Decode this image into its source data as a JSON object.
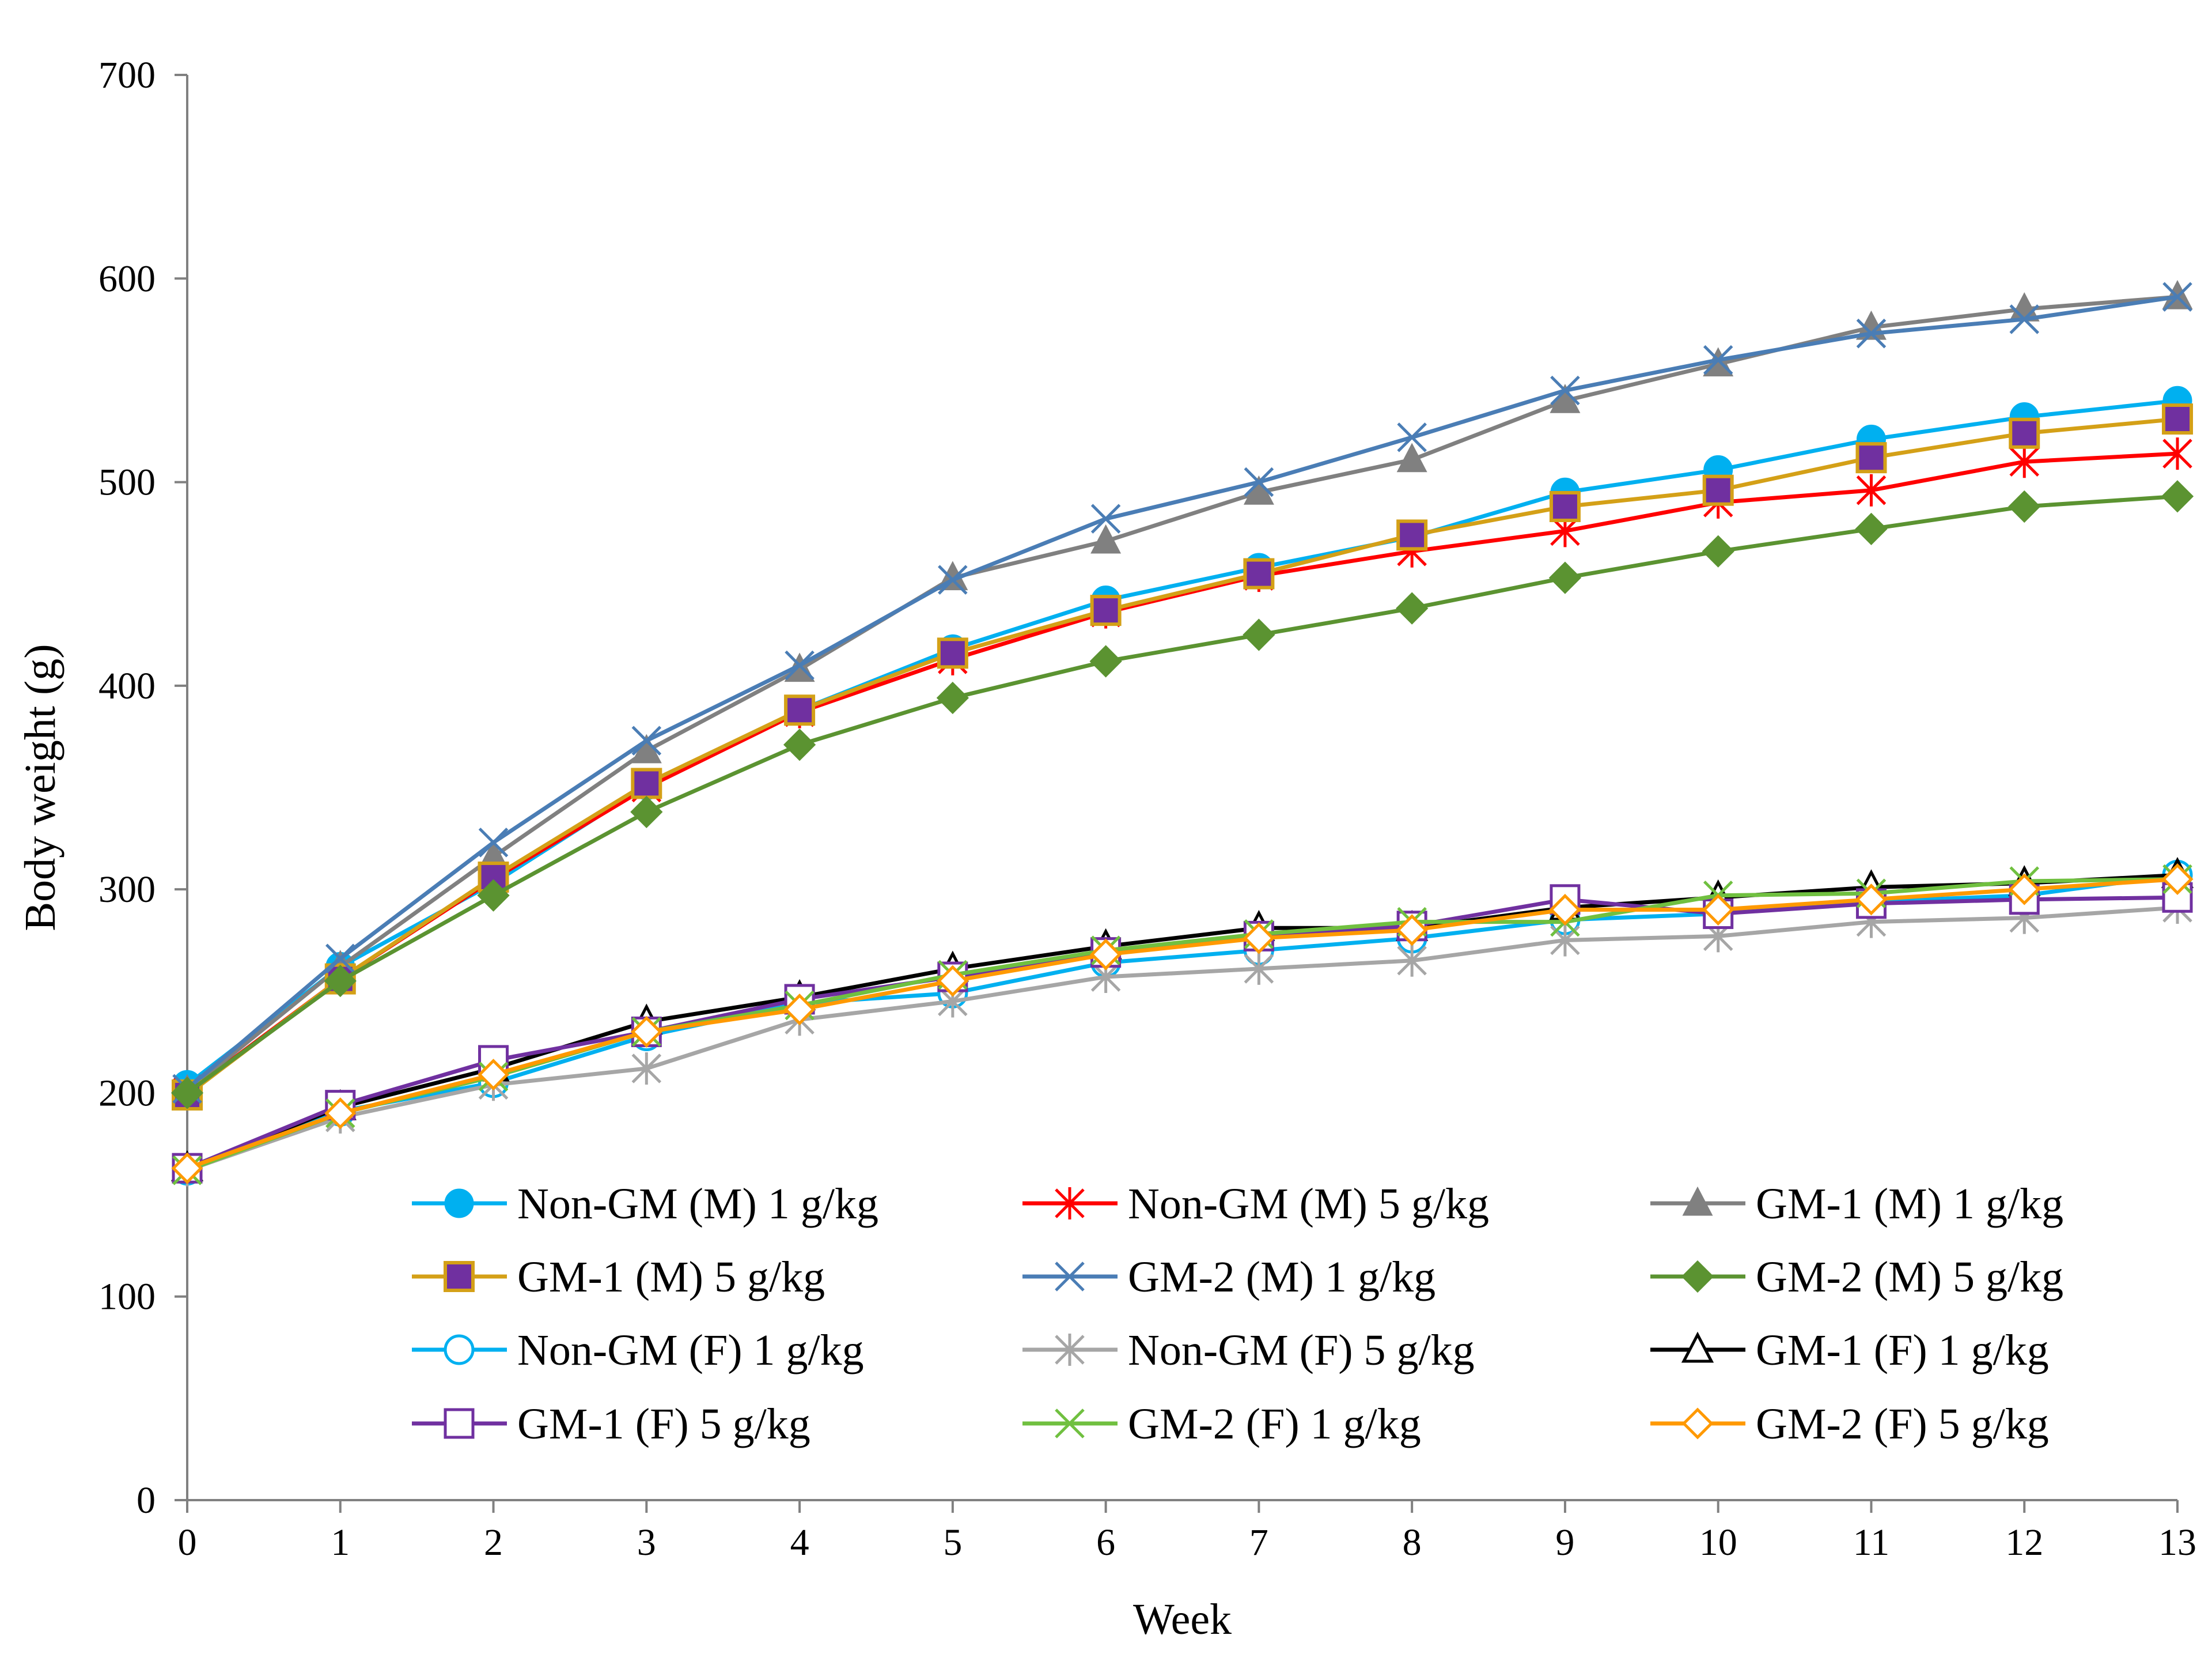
{
  "chart_data": {
    "type": "line",
    "title": "",
    "xlabel": "Week",
    "ylabel": "Body weight (g)",
    "xlim": [
      0,
      13
    ],
    "ylim": [
      0,
      700
    ],
    "x": [
      0,
      1,
      2,
      3,
      4,
      5,
      6,
      7,
      8,
      9,
      10,
      11,
      12,
      13
    ],
    "x_tick_labels": [
      "0",
      "1",
      "2",
      "3",
      "4",
      "5",
      "6",
      "7",
      "8",
      "9",
      "10",
      "11",
      "12",
      "13"
    ],
    "y_ticks": [
      0,
      100,
      200,
      300,
      400,
      500,
      600,
      700
    ],
    "y_tick_labels": [
      "0",
      "100",
      "200",
      "300",
      "400",
      "500",
      "600",
      "700"
    ],
    "grid": false,
    "legend_position": "bottom-center, 3 columns",
    "series": [
      {
        "name": "Non-GM (M) 1 g/kg",
        "color": "#00B0F0",
        "marker": "circle-filled",
        "values": [
          204,
          262,
          303,
          351,
          388,
          418,
          442,
          458,
          473,
          495,
          506,
          521,
          532,
          540
        ]
      },
      {
        "name": "Non-GM (M) 5 g/kg",
        "color": "#FF0000",
        "marker": "asterisk",
        "values": [
          200,
          256,
          305,
          350,
          387,
          413,
          436,
          454,
          466,
          476,
          490,
          496,
          510,
          514
        ]
      },
      {
        "name": "GM-1 (M) 1 g/kg",
        "color": "#808080",
        "marker": "triangle-filled",
        "values": [
          201,
          262,
          316,
          368,
          408,
          453,
          471,
          495,
          511,
          540,
          558,
          576,
          585,
          591
        ]
      },
      {
        "name": "GM-1 (M) 5 g/kg",
        "color": "#D4A017",
        "marker": "square-purple",
        "values": [
          199,
          256,
          306,
          352,
          388,
          416,
          437,
          455,
          474,
          488,
          496,
          512,
          524,
          531
        ]
      },
      {
        "name": "GM-2 (M) 1 g/kg",
        "color": "#4A7DB5",
        "marker": "x",
        "values": [
          202,
          266,
          323,
          373,
          410,
          452,
          482,
          500,
          522,
          545,
          560,
          573,
          580,
          591
        ]
      },
      {
        "name": "GM-2 (M) 5 g/kg",
        "color": "#5B9331",
        "marker": "diamond-filled",
        "values": [
          200,
          255,
          297,
          338,
          371,
          394,
          412,
          425,
          438,
          453,
          466,
          477,
          488,
          493
        ]
      },
      {
        "name": "Non-GM (F) 1 g/kg",
        "color": "#00B0F0",
        "marker": "circle-open",
        "values": [
          162,
          191,
          205,
          228,
          244,
          249,
          264,
          270,
          276,
          285,
          288,
          294,
          297,
          307
        ]
      },
      {
        "name": "Non-GM (F) 5 g/kg",
        "color": "#A6A6A6",
        "marker": "asterisk",
        "values": [
          162,
          188,
          204,
          212,
          236,
          245,
          257,
          261,
          265,
          275,
          277,
          284,
          286,
          291
        ]
      },
      {
        "name": "GM-1 (F) 1 g/kg",
        "color": "#000000",
        "marker": "triangle-open",
        "values": [
          163,
          193,
          212,
          235,
          247,
          261,
          272,
          281,
          281,
          291,
          296,
          301,
          303,
          307
        ]
      },
      {
        "name": "GM-1 (F) 5 g/kg",
        "color": "#7030A0",
        "marker": "square-open",
        "values": [
          163,
          194,
          216,
          230,
          246,
          257,
          269,
          277,
          282,
          295,
          288,
          293,
          295,
          296
        ]
      },
      {
        "name": "GM-2 (F) 1 g/kg",
        "color": "#70C040",
        "marker": "x",
        "values": [
          162,
          190,
          208,
          230,
          243,
          258,
          270,
          278,
          284,
          284,
          297,
          298,
          304,
          305
        ]
      },
      {
        "name": "GM-2 (F) 5 g/kg",
        "color": "#FF9900",
        "marker": "diamond-open",
        "values": [
          163,
          190,
          209,
          230,
          241,
          255,
          268,
          276,
          280,
          290,
          290,
          295,
          300,
          305
        ]
      }
    ]
  }
}
